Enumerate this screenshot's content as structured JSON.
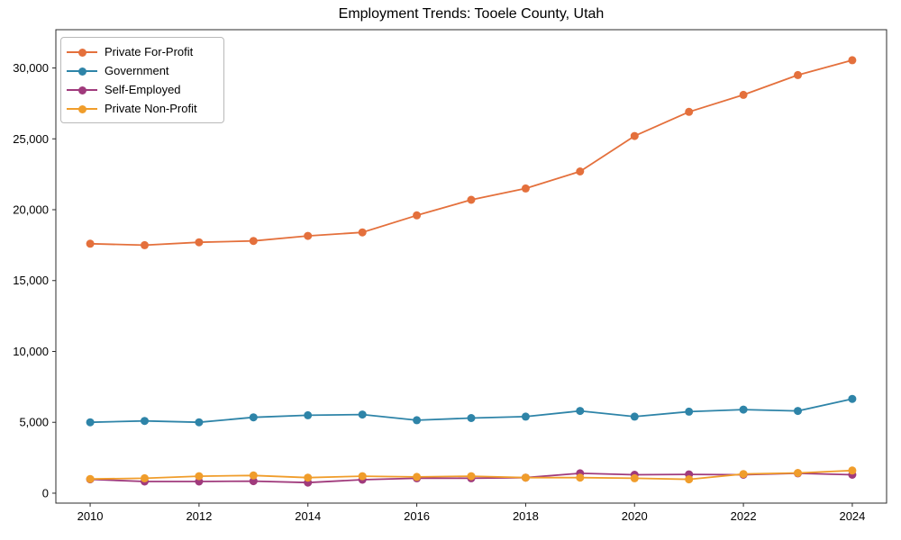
{
  "title": "Employment Trends: Tooele County, Utah",
  "chart_data": {
    "type": "line",
    "x": [
      2010,
      2011,
      2012,
      2013,
      2014,
      2015,
      2016,
      2017,
      2018,
      2019,
      2020,
      2021,
      2022,
      2023,
      2024
    ],
    "series": [
      {
        "name": "Private For-Profit",
        "color": "#e4703c",
        "values": [
          17600,
          17500,
          17700,
          17800,
          18150,
          18400,
          19600,
          20700,
          21500,
          22700,
          25200,
          26900,
          28100,
          29500,
          30550
        ]
      },
      {
        "name": "Government",
        "color": "#2e84a8",
        "values": [
          5000,
          5100,
          5000,
          5350,
          5500,
          5550,
          5150,
          5300,
          5400,
          5800,
          5400,
          5750,
          5900,
          5800,
          6650
        ]
      },
      {
        "name": "Self-Employed",
        "color": "#a03a7c",
        "values": [
          975,
          825,
          825,
          850,
          750,
          950,
          1050,
          1050,
          1100,
          1400,
          1300,
          1325,
          1300,
          1400,
          1300
        ]
      },
      {
        "name": "Private Non-Profit",
        "color": "#f09d2b",
        "values": [
          1000,
          1050,
          1200,
          1250,
          1100,
          1200,
          1150,
          1200,
          1100,
          1100,
          1050,
          975,
          1350,
          1425,
          1600
        ]
      }
    ],
    "title": "Employment Trends: Tooele County, Utah",
    "xlabel": "",
    "ylabel": "",
    "xlim": [
      2009.37,
      2024.63
    ],
    "ylim": [
      -700,
      32700
    ],
    "xticks": {
      "values": [
        2010,
        2012,
        2014,
        2016,
        2018,
        2020,
        2022,
        2024
      ],
      "labels": [
        "2010",
        "2012",
        "2014",
        "2016",
        "2018",
        "2020",
        "2022",
        "2024"
      ]
    },
    "yticks": {
      "values": [
        0,
        5000,
        10000,
        15000,
        20000,
        25000,
        30000
      ],
      "labels": [
        "0",
        "5,000",
        "10,000",
        "15,000",
        "20,000",
        "25,000",
        "30,000"
      ]
    },
    "grid": false,
    "legend_position": "upper left",
    "marker": "circle",
    "axis_color": "#2b2b2b",
    "tick_label_color": "#000000"
  }
}
